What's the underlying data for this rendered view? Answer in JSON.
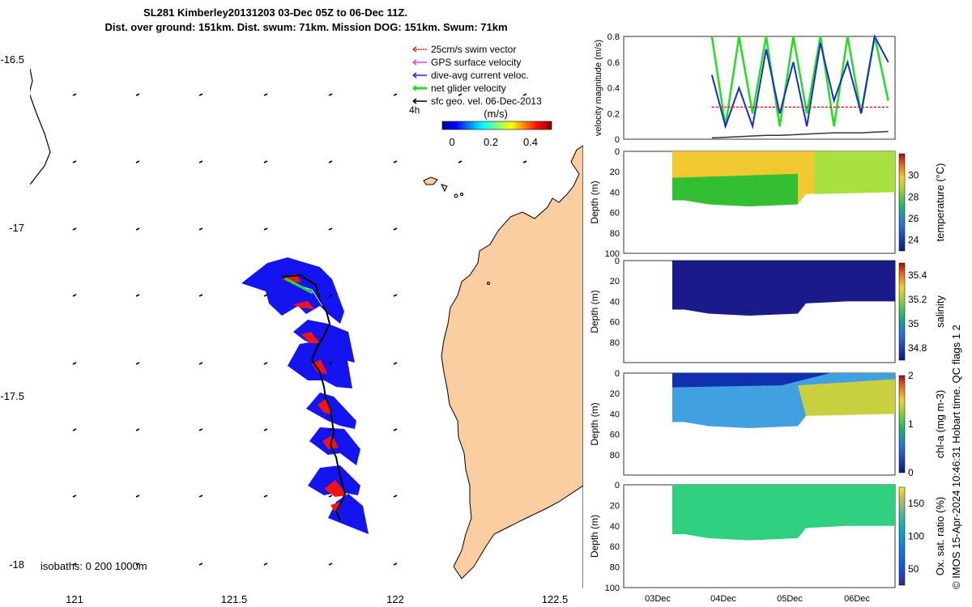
{
  "title_line1": "SL281 Kimberley20131203 03-Dec 05Z to 06-Dec 11Z.",
  "title_line2": "Dist. over ground: 151km. Dist. swum: 71km. Mission DOG: 151km. Swum: 71km",
  "map": {
    "lat_ticks": [
      "-16.5",
      "-17",
      "-17.5",
      "-18"
    ],
    "lon_ticks": [
      "121",
      "121.5",
      "122",
      "122.5"
    ],
    "isobaths_label": "isobaths: 0   200  1000m",
    "time_label": "4h",
    "legend": [
      {
        "label": "25cm/s swim vector",
        "color": "#e8191b"
      },
      {
        "label": "GPS surface velocity",
        "color": "#e040e0"
      },
      {
        "label": "dive-avg current veloc.",
        "color": "#1a2bd6"
      },
      {
        "label": "net glider velocity",
        "color": "#22dd22"
      },
      {
        "label": "sfc geo. vel. 06-Dec-2013",
        "color": "#000000"
      }
    ],
    "colorbar": {
      "label": "(m/s)",
      "ticks": [
        "0",
        "0.2",
        "0.4"
      ]
    },
    "colors": {
      "land": "#f9cda0",
      "track": "#1414f0",
      "swim": "#f01414"
    }
  },
  "chart_data": [
    {
      "type": "line",
      "ylabel": "velocity magnitude (m/s)",
      "ylim": [
        0,
        0.8
      ],
      "y_ticks": [
        "0",
        "0.2",
        "0.4",
        "0.6",
        "0.8"
      ],
      "xlim": [
        0,
        4
      ],
      "x": [
        1.3,
        1.5,
        1.7,
        1.9,
        2.1,
        2.3,
        2.5,
        2.7,
        2.9,
        3.1,
        3.3,
        3.5,
        3.7,
        3.9
      ],
      "series": [
        {
          "name": "net glider velocity",
          "color": "#22dd22",
          "values": [
            0.8,
            0.1,
            0.8,
            0.2,
            0.8,
            0.1,
            0.8,
            0.2,
            0.8,
            0.1,
            0.8,
            0.2,
            0.8,
            0.3
          ]
        },
        {
          "name": "dive-avg current veloc.",
          "color": "#1a2bd6",
          "values": [
            0.5,
            0.1,
            0.4,
            0.1,
            0.7,
            0.2,
            0.6,
            0.1,
            0.75,
            0.3,
            0.6,
            0.2,
            0.8,
            0.6
          ]
        },
        {
          "name": "swim speed",
          "color": "#e8191b",
          "values": [
            0.25,
            0.25,
            0.25,
            0.25,
            0.25,
            0.25,
            0.25,
            0.25,
            0.25,
            0.25,
            0.25,
            0.25,
            0.25,
            0.25
          ]
        },
        {
          "name": "sfc geo. vel.",
          "color": "#333333",
          "values": [
            0.01,
            0.015,
            0.02,
            0.025,
            0.03,
            0.03,
            0.035,
            0.04,
            0.045,
            0.05,
            0.05,
            0.05,
            0.055,
            0.06
          ]
        }
      ]
    },
    {
      "type": "heatmap",
      "ylabel": "Depth (m)",
      "y_ticks": [
        "0",
        "20",
        "40",
        "60",
        "80",
        "100"
      ],
      "colorbar_label": "temperature (°C)",
      "colorbar_ticks": [
        "24",
        "26",
        "28",
        "30"
      ],
      "colorbar_range": [
        23,
        32
      ]
    },
    {
      "type": "heatmap",
      "ylabel": "Depth (m)",
      "y_ticks": [
        "0",
        "20",
        "40",
        "60",
        "80"
      ],
      "colorbar_label": "salinity",
      "colorbar_ticks": [
        "34.8",
        "35",
        "35.2",
        "35.4"
      ],
      "colorbar_range": [
        34.7,
        35.5
      ]
    },
    {
      "type": "heatmap",
      "ylabel": "Depth (m)",
      "y_ticks": [
        "0",
        "20",
        "40",
        "60",
        "80"
      ],
      "colorbar_label": "chl-a (mg m-3)",
      "colorbar_ticks": [
        "0",
        "1",
        "2"
      ],
      "colorbar_range": [
        0,
        2
      ]
    },
    {
      "type": "heatmap",
      "ylabel": "Depth (m)",
      "y_ticks": [
        "0",
        "20",
        "40",
        "60",
        "80",
        "100"
      ],
      "colorbar_label": "Ox. sat. ratio (%)",
      "colorbar_ticks": [
        "50",
        "100",
        "150"
      ],
      "colorbar_range": [
        25,
        175
      ]
    }
  ],
  "x_dates": [
    "03Dec",
    "04Dec",
    "05Dec",
    "06Dec"
  ],
  "credit": "© IMOS 15-Apr-2024 10:46:31 Hobart time. QC flags 1  2"
}
